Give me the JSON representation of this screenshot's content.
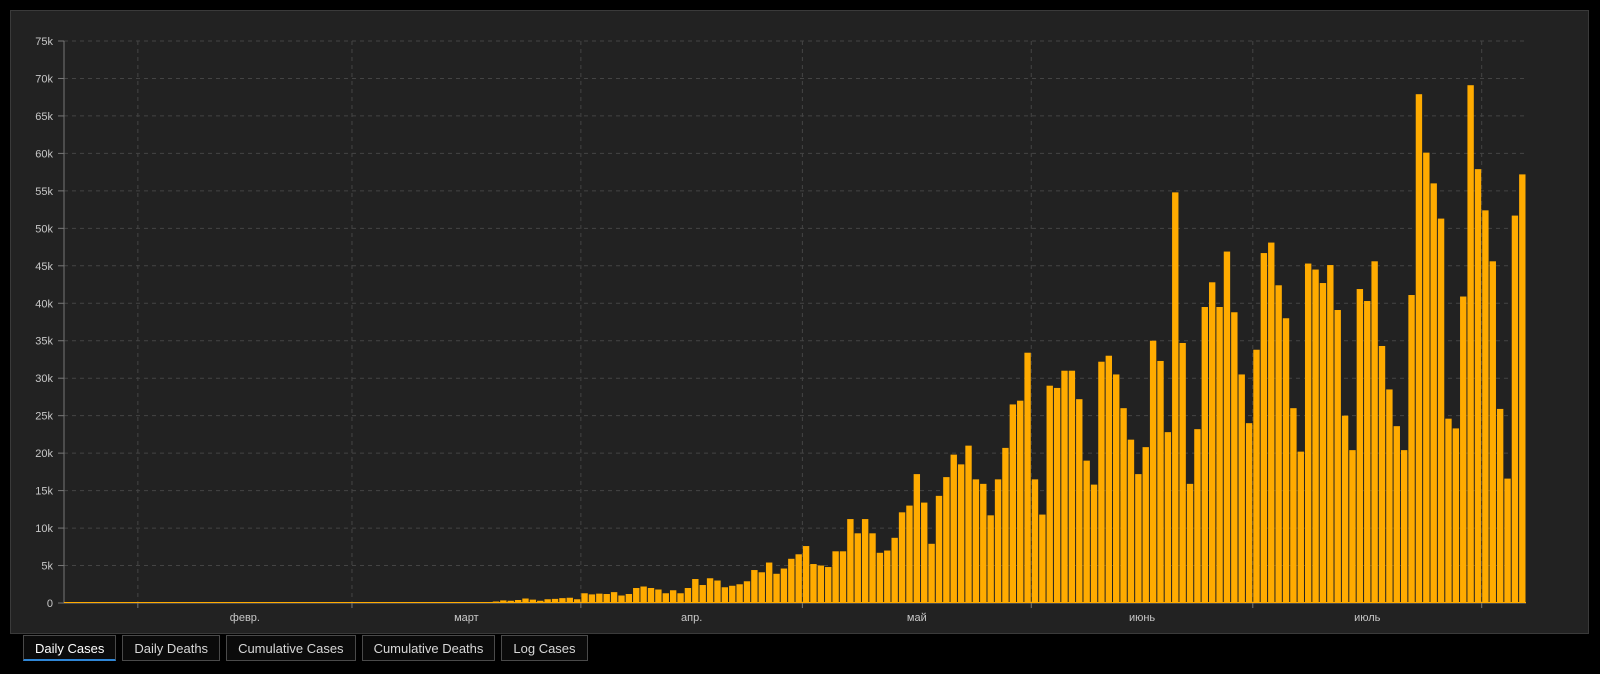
{
  "colors": {
    "background": "#000000",
    "panel": "#222222",
    "bar": "#ffab00",
    "grid": "#444444",
    "text": "#c8c8c8",
    "active_tab": "#2f86d6"
  },
  "tabs": [
    {
      "label": "Daily Cases",
      "active": true
    },
    {
      "label": "Daily Deaths",
      "active": false
    },
    {
      "label": "Cumulative Cases",
      "active": false
    },
    {
      "label": "Cumulative Deaths",
      "active": false
    },
    {
      "label": "Log Cases",
      "active": false
    }
  ],
  "chart_data": {
    "type": "bar",
    "title": "",
    "xlabel": "",
    "ylabel": "",
    "ylim": [
      0,
      75000
    ],
    "y_ticks": [
      "0",
      "5k",
      "10k",
      "15k",
      "20k",
      "25k",
      "30k",
      "35k",
      "40k",
      "45k",
      "50k",
      "55k",
      "60k",
      "65k",
      "70k",
      "75k"
    ],
    "x_ticks": [
      "февр.",
      "март",
      "апр.",
      "май",
      "июнь",
      "июль"
    ],
    "grid": true,
    "legend": "none",
    "series": [
      {
        "values": [
          0,
          0,
          0,
          0,
          0,
          0,
          0,
          0,
          0,
          0,
          0,
          0,
          0,
          0,
          0,
          0,
          0,
          0,
          0,
          0,
          0,
          0,
          0,
          0,
          0,
          0,
          0,
          0,
          0,
          0,
          0,
          0,
          0,
          0,
          0,
          0,
          0,
          0,
          0,
          0,
          0,
          0,
          0,
          0,
          0,
          0,
          0,
          0,
          0,
          0,
          0,
          0,
          0,
          100,
          50,
          60,
          80,
          120,
          200,
          350,
          300,
          400,
          600,
          450,
          300,
          500,
          550,
          650,
          700,
          500,
          1300,
          1150,
          1250,
          1200,
          1450,
          1000,
          1200,
          2000,
          2200,
          2000,
          1800,
          1300,
          1700,
          1300,
          2000,
          3200,
          2400,
          3300,
          3000,
          2100,
          2300,
          2500,
          2900,
          4400,
          4100,
          5400,
          3900,
          4600,
          5900,
          6500,
          7600,
          5200,
          5000,
          4800,
          6900,
          6900,
          11200,
          9300,
          11200,
          9300,
          6700,
          7000,
          8700,
          12100,
          13000,
          17200,
          13400,
          7900,
          14300,
          16800,
          19800,
          18500,
          21000,
          16500,
          15900,
          11700,
          16500,
          20700,
          26500,
          27000,
          33400,
          16500,
          11800,
          29000,
          28700,
          31000,
          31000,
          27200,
          19000,
          15800,
          32200,
          33000,
          30500,
          26000,
          21800,
          17200,
          20800,
          35000,
          32300,
          22800,
          54800,
          34700,
          15900,
          23200,
          39500,
          42800,
          39500,
          46900,
          38800,
          30500,
          24000,
          33800,
          46700,
          48100,
          42400,
          38000,
          26000,
          20200,
          45300,
          44500,
          42700,
          45100,
          39100,
          25000,
          20400,
          41900,
          40300,
          45600,
          34300,
          28500,
          23600,
          20400,
          41100,
          67900,
          60100,
          56000,
          51300,
          24600,
          23300,
          40900,
          69100,
          57900,
          52400,
          45600,
          25900,
          16600,
          51700,
          57200
        ]
      }
    ]
  }
}
